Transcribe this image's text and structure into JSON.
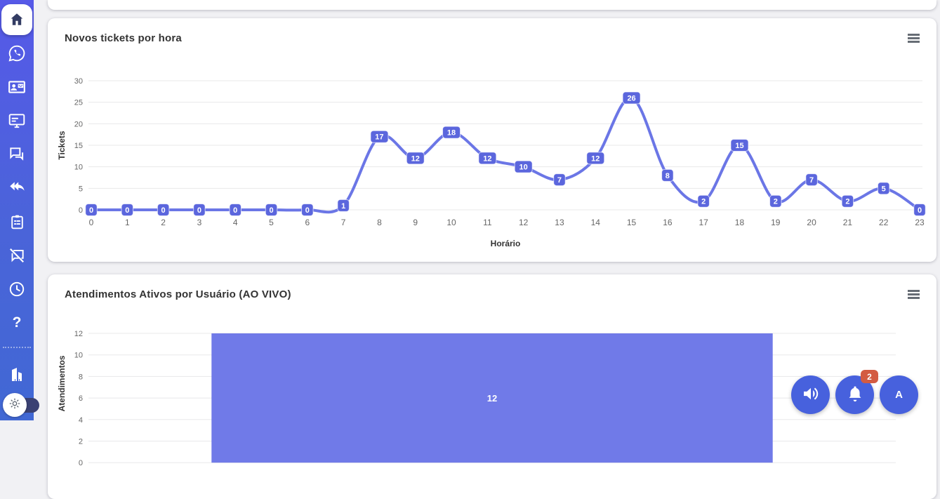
{
  "colors": {
    "sidebar_top": "#5659e8",
    "sidebar_bottom": "#4168d4",
    "line": "#6b76e6",
    "line_label_bg": "#5b66dd",
    "bar": "#707ae8",
    "fab": "#4761dd",
    "badge": "#d35b42",
    "grid": "#e8e8ea",
    "tick_text": "#666666",
    "axis_title": "#333333"
  },
  "sidebar": {
    "icons": [
      {
        "name": "home-icon",
        "active": true
      },
      {
        "name": "whatsapp-icon"
      },
      {
        "name": "contact-card-icon"
      },
      {
        "name": "monitor-icon"
      },
      {
        "name": "chat-bubbles-icon"
      },
      {
        "name": "reply-all-icon"
      },
      {
        "name": "clipboard-list-icon"
      },
      {
        "name": "chat-slash-icon"
      },
      {
        "name": "clock-icon"
      },
      {
        "name": "help-icon"
      },
      {
        "name": "building-icon"
      }
    ],
    "help_label": "?",
    "theme_toggle_state": "light"
  },
  "fabs": {
    "sound": {
      "icon": "speaker-icon"
    },
    "notifications": {
      "icon": "bell-icon",
      "badge": "2"
    },
    "profile": {
      "label": "A"
    }
  },
  "chart_data": [
    {
      "type": "line",
      "title": "Novos tickets por hora",
      "xlabel": "Horário",
      "ylabel": "Tickets",
      "x": [
        0,
        1,
        2,
        3,
        4,
        5,
        6,
        7,
        8,
        9,
        10,
        11,
        12,
        13,
        14,
        15,
        16,
        17,
        18,
        19,
        20,
        21,
        22,
        23
      ],
      "values": [
        0,
        0,
        0,
        0,
        0,
        0,
        0,
        1,
        17,
        12,
        18,
        12,
        10,
        7,
        12,
        26,
        8,
        2,
        15,
        2,
        7,
        2,
        5,
        0
      ],
      "ylim": [
        0,
        30
      ],
      "yticks": [
        0,
        5,
        10,
        15,
        20,
        25,
        30
      ],
      "grid": true,
      "legend": "none",
      "data_labels": true
    },
    {
      "type": "bar",
      "title": "Atendimentos Ativos por Usuário (AO VIVO)",
      "xlabel": "",
      "ylabel": "Atendimentos",
      "categories": [
        ""
      ],
      "values": [
        12
      ],
      "ylim": [
        0,
        12
      ],
      "yticks": [
        12,
        10,
        8,
        6,
        4,
        2,
        0
      ],
      "grid": true,
      "legend": "none",
      "data_labels": true
    }
  ]
}
